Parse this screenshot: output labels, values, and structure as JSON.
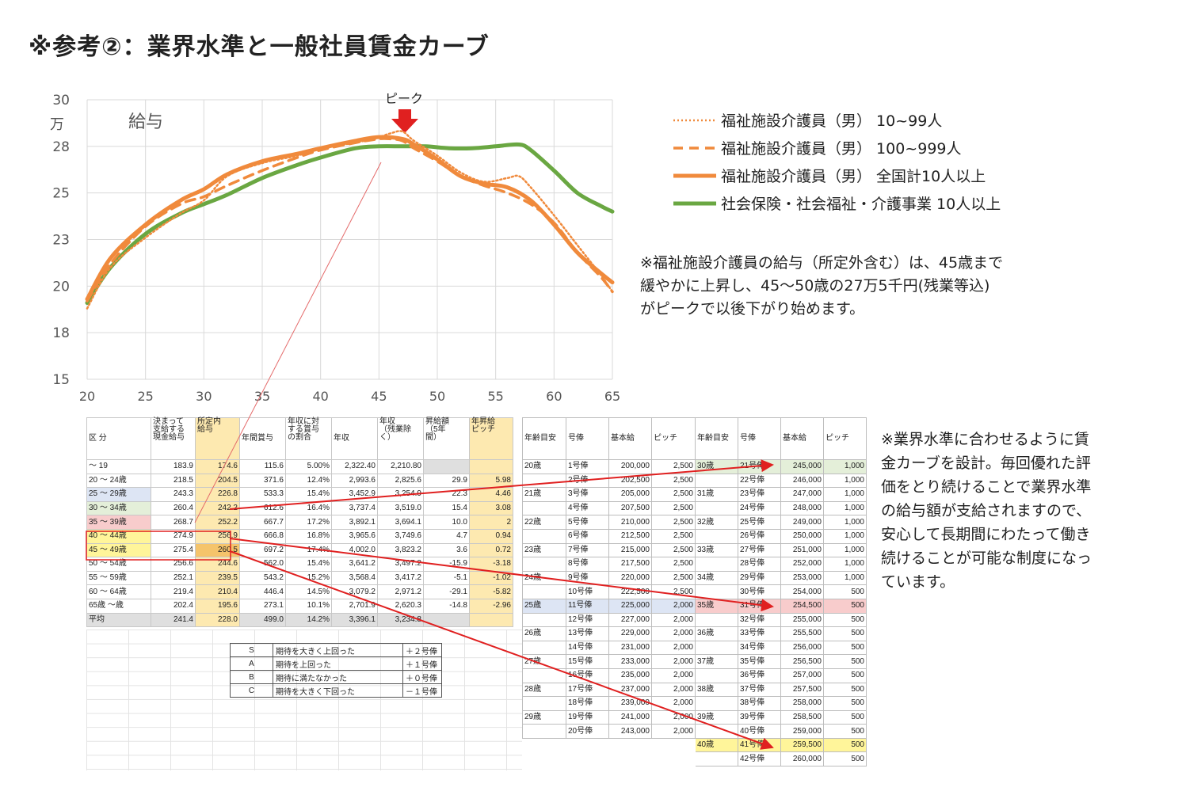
{
  "title": "※参考②：業界水準と一般社員賃金カーブ",
  "chart_data": {
    "type": "line",
    "title": "給与",
    "ylabel": "万",
    "annotation": "ピーク",
    "ylim": [
      15,
      30
    ],
    "yticks": [
      "30",
      "28",
      "25",
      "23",
      "20",
      "18",
      "15"
    ],
    "xlim": [
      20,
      65
    ],
    "xticks": [
      "20",
      "25",
      "30",
      "35",
      "40",
      "45",
      "50",
      "55",
      "60",
      "65"
    ],
    "series": [
      {
        "name": "福祉施設介護員（男） 10~99人",
        "color": "#f08a3c",
        "style": "dotted",
        "x": [
          20,
          22,
          25,
          28,
          30,
          32,
          35,
          38,
          40,
          43,
          45,
          46,
          47,
          48,
          50,
          52,
          54,
          56,
          57,
          58,
          60,
          62,
          64,
          65
        ],
        "y": [
          18.8,
          21.0,
          22.6,
          23.9,
          24.6,
          25.9,
          26.6,
          27.0,
          27.4,
          27.7,
          28.0,
          28.2,
          28.3,
          27.8,
          27.0,
          26.1,
          25.6,
          25.8,
          25.9,
          25.3,
          23.8,
          22.2,
          20.6,
          19.7
        ]
      },
      {
        "name": "福祉施設介護員（男） 100~999人",
        "color": "#f08a3c",
        "style": "dashed",
        "x": [
          20,
          22,
          25,
          28,
          30,
          32,
          35,
          38,
          40,
          43,
          45,
          46,
          47,
          48,
          50,
          52,
          54,
          56,
          58,
          60,
          62,
          64,
          65
        ],
        "y": [
          19.2,
          21.2,
          23.2,
          24.4,
          24.8,
          25.4,
          26.2,
          26.9,
          27.3,
          27.7,
          27.9,
          27.9,
          27.8,
          27.4,
          26.7,
          25.9,
          25.4,
          25.0,
          24.4,
          23.4,
          21.8,
          20.5,
          19.7
        ]
      },
      {
        "name": "福祉施設介護員（男） 全国計10人以上",
        "color": "#f08a3c",
        "style": "solid",
        "x": [
          20,
          22,
          25,
          28,
          30,
          32,
          35,
          38,
          40,
          43,
          45,
          47,
          48,
          50,
          52,
          54,
          56,
          58,
          60,
          62,
          64,
          65
        ],
        "y": [
          19.3,
          21.5,
          23.3,
          24.6,
          25.2,
          26.0,
          26.7,
          27.1,
          27.4,
          27.8,
          28.0,
          27.9,
          27.6,
          26.8,
          25.9,
          25.5,
          25.3,
          24.6,
          23.3,
          21.8,
          20.7,
          20.2
        ]
      },
      {
        "name": "社会保険・社会福祉・介護事業 10人以上",
        "color": "#6aa742",
        "style": "solid",
        "x": [
          20,
          22,
          25,
          28,
          30,
          32,
          35,
          38,
          40,
          43,
          45,
          47,
          49,
          51,
          53,
          55,
          57,
          58,
          60,
          62,
          64,
          65
        ],
        "y": [
          19.1,
          21.0,
          22.8,
          23.9,
          24.4,
          24.9,
          25.8,
          26.5,
          26.9,
          27.4,
          27.5,
          27.5,
          27.5,
          27.4,
          27.4,
          27.5,
          27.6,
          27.3,
          26.2,
          25.0,
          24.3,
          24.0
        ]
      }
    ]
  },
  "note_peak": [
    "※福祉施設介護員の給与（所定外含む）は、45歳まで",
    "緩やかに上昇し、45～50歳の27万5千円(残業等込)",
    "がピークで以後下がり始めます。"
  ],
  "note_design": [
    "※業界水準に合わせるように賃",
    "金カーブを設計。毎回優れた評",
    "価をとり続けることで業界水準",
    "の給与額が支給されますので、",
    "安心して長期間にわたって働き",
    "続けることが可能な制度になっ",
    "ています。"
  ],
  "industry_table": {
    "headers": [
      [
        "区 分"
      ],
      [
        "決まって",
        "支給する",
        "現金給与"
      ],
      [
        "所定内",
        "給与"
      ],
      [
        "年間賞与"
      ],
      [
        "年収に対",
        "する賞与",
        "の割合"
      ],
      [
        "年収"
      ],
      [
        "年収",
        "（残業除",
        "く）"
      ],
      [
        "昇給額",
        "（5年",
        "間）"
      ],
      [
        "年昇給",
        "ピッチ"
      ]
    ],
    "rows": [
      [
        "～ 19",
        "183.9",
        "174.6",
        "115.6",
        "5.00%",
        "2,322.40",
        "2,210.80",
        "",
        ""
      ],
      [
        "20 ～ 24歳",
        "218.5",
        "204.5",
        "371.6",
        "12.4%",
        "2,993.6",
        "2,825.6",
        "29.9",
        "5.98"
      ],
      [
        "25 ～ 29歳",
        "243.3",
        "226.8",
        "533.3",
        "15.4%",
        "3,452.9",
        "3,254.9",
        "22.3",
        "4.46"
      ],
      [
        "30 ～ 34歳",
        "260.4",
        "242.2",
        "612.6",
        "16.4%",
        "3,737.4",
        "3,519.0",
        "15.4",
        "3.08"
      ],
      [
        "35 ～ 39歳",
        "268.7",
        "252.2",
        "667.7",
        "17.2%",
        "3,892.1",
        "3,694.1",
        "10.0",
        "2"
      ],
      [
        "40 ～ 44歳",
        "274.9",
        "256.9",
        "666.8",
        "16.8%",
        "3,965.6",
        "3,749.6",
        "4.7",
        "0.94"
      ],
      [
        "45 ～ 49歳",
        "275.4",
        "260.5",
        "697.2",
        "17.4%",
        "4,002.0",
        "3,823.2",
        "3.6",
        "0.72"
      ],
      [
        "50 ～ 54歳",
        "256.6",
        "244.6",
        "562.0",
        "15.4%",
        "3,641.2",
        "3,497.2",
        "-15.9",
        "-3.18"
      ],
      [
        "55 ～ 59歳",
        "252.1",
        "239.5",
        "543.2",
        "15.2%",
        "3,568.4",
        "3,417.2",
        "-5.1",
        "-1.02"
      ],
      [
        "60 ～ 64歳",
        "219.4",
        "210.4",
        "446.4",
        "14.5%",
        "3,079.2",
        "2,971.2",
        "-29.1",
        "-5.82"
      ],
      [
        "65歳 ～歳",
        "202.4",
        "195.6",
        "273.1",
        "10.1%",
        "2,701.9",
        "2,620.3",
        "-14.8",
        "-2.96"
      ],
      [
        "平均",
        "241.4",
        "228.0",
        "499.0",
        "14.2%",
        "3,396.1",
        "3,234.8",
        "",
        ""
      ]
    ]
  },
  "rating_table": [
    [
      "S",
      "期待を大きく上回った",
      "＋２号俸"
    ],
    [
      "A",
      "期待を上回った",
      "＋１号俸"
    ],
    [
      "B",
      "期待に満たなかった",
      "＋０号俸"
    ],
    [
      "C",
      "期待を大きく下回った",
      "－１号俸"
    ]
  ],
  "salary_table": {
    "headers": [
      "年齢目安",
      "号俸",
      "基本給",
      "ピッチ",
      "年齢目安",
      "号俸",
      "基本給",
      "ピッチ"
    ],
    "rows": [
      [
        "20歳",
        "1号俸",
        "200,000",
        "2,500",
        "30歳",
        "21号俸",
        "245,000",
        "1,000"
      ],
      [
        "",
        "2号俸",
        "202,500",
        "2,500",
        "",
        "22号俸",
        "246,000",
        "1,000"
      ],
      [
        "21歳",
        "3号俸",
        "205,000",
        "2,500",
        "31歳",
        "23号俸",
        "247,000",
        "1,000"
      ],
      [
        "",
        "4号俸",
        "207,500",
        "2,500",
        "",
        "24号俸",
        "248,000",
        "1,000"
      ],
      [
        "22歳",
        "5号俸",
        "210,000",
        "2,500",
        "32歳",
        "25号俸",
        "249,000",
        "1,000"
      ],
      [
        "",
        "6号俸",
        "212,500",
        "2,500",
        "",
        "26号俸",
        "250,000",
        "1,000"
      ],
      [
        "23歳",
        "7号俸",
        "215,000",
        "2,500",
        "33歳",
        "27号俸",
        "251,000",
        "1,000"
      ],
      [
        "",
        "8号俸",
        "217,500",
        "2,500",
        "",
        "28号俸",
        "252,000",
        "1,000"
      ],
      [
        "24歳",
        "9号俸",
        "220,000",
        "2,500",
        "34歳",
        "29号俸",
        "253,000",
        "1,000"
      ],
      [
        "",
        "10号俸",
        "222,500",
        "2,500",
        "",
        "30号俸",
        "254,000",
        "500"
      ],
      [
        "25歳",
        "11号俸",
        "225,000",
        "2,000",
        "35歳",
        "31号俸",
        "254,500",
        "500"
      ],
      [
        "",
        "12号俸",
        "227,000",
        "2,000",
        "",
        "32号俸",
        "255,000",
        "500"
      ],
      [
        "26歳",
        "13号俸",
        "229,000",
        "2,000",
        "36歳",
        "33号俸",
        "255,500",
        "500"
      ],
      [
        "",
        "14号俸",
        "231,000",
        "2,000",
        "",
        "34号俸",
        "256,000",
        "500"
      ],
      [
        "27歳",
        "15号俸",
        "233,000",
        "2,000",
        "37歳",
        "35号俸",
        "256,500",
        "500"
      ],
      [
        "",
        "16号俸",
        "235,000",
        "2,000",
        "",
        "36号俸",
        "257,000",
        "500"
      ],
      [
        "28歳",
        "17号俸",
        "237,000",
        "2,000",
        "38歳",
        "37号俸",
        "257,500",
        "500"
      ],
      [
        "",
        "18号俸",
        "239,000",
        "2,000",
        "",
        "38号俸",
        "258,000",
        "500"
      ],
      [
        "29歳",
        "19号俸",
        "241,000",
        "2,000",
        "39歳",
        "39号俸",
        "258,500",
        "500"
      ],
      [
        "",
        "20号俸",
        "243,000",
        "2,000",
        "",
        "40号俸",
        "259,000",
        "500"
      ],
      [
        "",
        "",
        "",
        "",
        "40歳",
        "41号俸",
        "259,500",
        "500"
      ],
      [
        "",
        "",
        "",
        "",
        "",
        "42号俸",
        "260,000",
        "500"
      ]
    ]
  },
  "colors": {
    "orange": "#f08a3c",
    "green": "#6aa742",
    "arrow": "#e02020",
    "table_yellow": "#fde9b0"
  }
}
